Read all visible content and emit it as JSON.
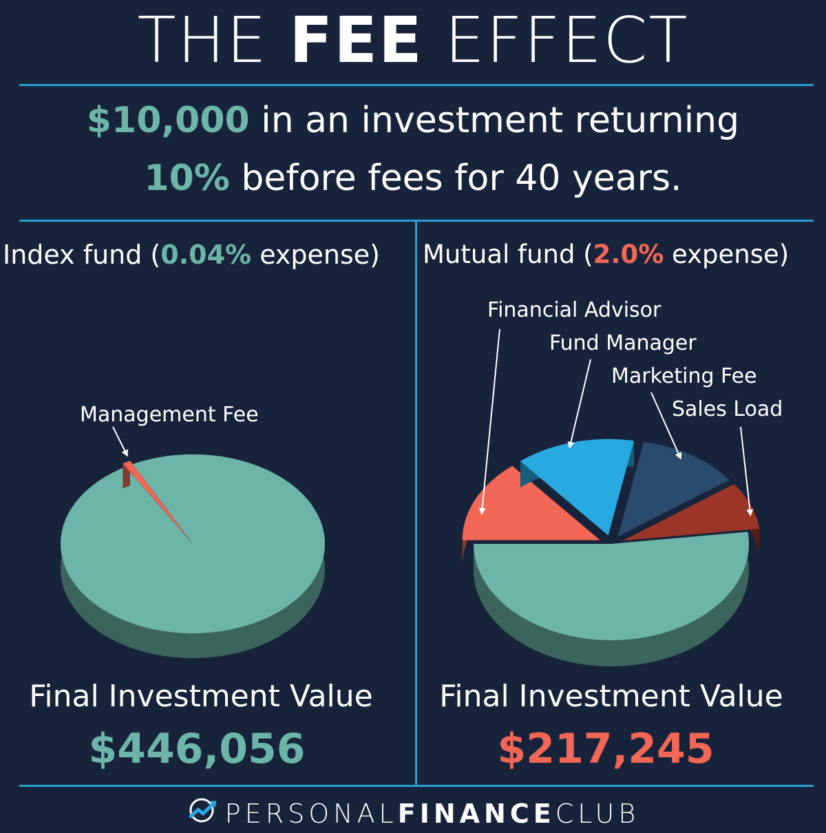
{
  "header": {
    "title_light_1": "THE",
    "title_bold": "FEE",
    "title_light_2": "EFFECT"
  },
  "subtitle": {
    "amount": "$10,000",
    "line1_rest": " in an investment returning",
    "rate": "10%",
    "line2_rest": " before fees for 40 years."
  },
  "colors": {
    "background": "#17233a",
    "divider": "#2a9fd6",
    "teal": "#6cb5a8",
    "coral": "#f26755",
    "sky": "#29a9e1",
    "navy": "#2a4a6e",
    "brick": "#9b3528"
  },
  "chart_data": [
    {
      "type": "pie",
      "title_prefix": "Index fund (",
      "title_highlight": "0.04%",
      "title_suffix": " expense)",
      "slices": [
        {
          "label": "Management Fee",
          "color": "#f26755",
          "value": 1
        },
        {
          "label": "",
          "color": "#6cb5a8",
          "value": 99
        }
      ],
      "final_label": "Final Investment Value",
      "final_value": "$446,056"
    },
    {
      "type": "pie",
      "title_prefix": "Mutual fund (",
      "title_highlight": "2.0%",
      "title_suffix": " expense)",
      "slices": [
        {
          "label": "Financial Advisor",
          "color": "#f26755",
          "value": 14
        },
        {
          "label": "Fund Manager",
          "color": "#29a9e1",
          "value": 14
        },
        {
          "label": "Marketing Fee",
          "color": "#2a4a6e",
          "value": 12
        },
        {
          "label": "Sales Load",
          "color": "#9b3528",
          "value": 8
        },
        {
          "label": "",
          "color": "#6cb5a8",
          "value": 52
        }
      ],
      "final_label": "Final Investment Value",
      "final_value": "$217,245"
    }
  ],
  "footer": {
    "brand_light_1": "PERSONAL",
    "brand_bold": "FINANCE",
    "brand_light_2": "CLUB"
  }
}
